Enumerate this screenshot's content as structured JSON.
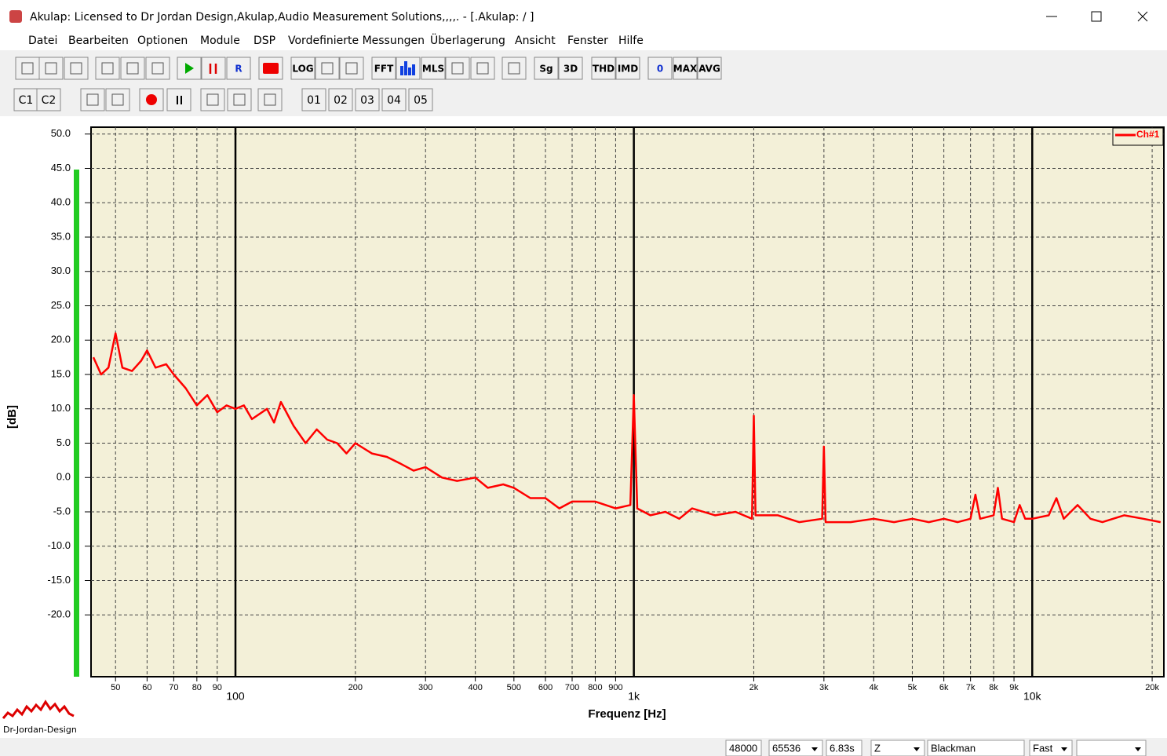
{
  "window": {
    "title": "Akulap: Licensed to Dr Jordan Design,Akulap,Audio Measurement Solutions,,,,. - [.Akulap: / ]"
  },
  "menu": [
    "Datei",
    "Bearbeiten",
    "Optionen",
    "Module",
    "DSP",
    "Vordefinierte Messungen",
    "Überlagerung",
    "Ansicht",
    "Fenster",
    "Hilfe"
  ],
  "toolbar": {
    "row1": [
      "R",
      "LOG",
      "FFT",
      "MLS",
      "Sg",
      "3D",
      "THD",
      "IMD",
      "0",
      "MAX",
      "AVG"
    ],
    "row2": [
      "C1",
      "C2",
      "01",
      "02",
      "03",
      "04",
      "05"
    ]
  },
  "chart_data": {
    "type": "line",
    "xlabel": "Frequenz [Hz]",
    "ylabel": "[dB]",
    "xscale": "log",
    "xlim": [
      43.4,
      21400
    ],
    "ylim": [
      -29,
      51
    ],
    "grid": true,
    "legend": "upper right",
    "xticks_major": [
      100,
      {
        "value": 1000,
        "label": "1k"
      },
      {
        "value": 10000,
        "label": "10k"
      }
    ],
    "xticks": [
      50,
      60,
      70,
      80,
      90,
      200,
      300,
      400,
      500,
      600,
      700,
      800,
      900,
      {
        "value": 2000,
        "label": "2k"
      },
      {
        "value": 3000,
        "label": "3k"
      },
      {
        "value": 4000,
        "label": "4k"
      },
      {
        "value": 5000,
        "label": "5k"
      },
      {
        "value": 6000,
        "label": "6k"
      },
      {
        "value": 7000,
        "label": "7k"
      },
      {
        "value": 8000,
        "label": "8k"
      },
      {
        "value": 9000,
        "label": "9k"
      },
      {
        "value": 20000,
        "label": "20k"
      }
    ],
    "yticks": [
      {
        "value": 50,
        "label": "50.0"
      },
      {
        "value": 45,
        "label": "45.0"
      },
      {
        "value": 40,
        "label": "40.0"
      },
      {
        "value": 35,
        "label": "35.0"
      },
      {
        "value": 30,
        "label": "30.0"
      },
      {
        "value": 25,
        "label": "25.0"
      },
      {
        "value": 20,
        "label": "20.0"
      },
      {
        "value": 15,
        "label": "15.0"
      },
      {
        "value": 10,
        "label": "10.0"
      },
      {
        "value": 5,
        "label": "5.0"
      },
      {
        "value": 0,
        "label": "0.0"
      },
      {
        "value": -5,
        "label": "-5.0"
      },
      {
        "value": -10,
        "label": "-10.0"
      },
      {
        "value": -15,
        "label": "-15.0"
      },
      {
        "value": -20,
        "label": "-20.0"
      }
    ],
    "x": [
      44,
      46,
      48,
      50,
      52,
      55,
      58,
      60,
      63,
      67,
      70,
      75,
      80,
      85,
      90,
      95,
      100,
      105,
      110,
      120,
      125,
      130,
      140,
      150,
      160,
      170,
      180,
      190,
      200,
      220,
      240,
      260,
      280,
      300,
      330,
      360,
      400,
      430,
      470,
      500,
      550,
      600,
      650,
      700,
      800,
      900,
      980,
      1000,
      1020,
      1100,
      1200,
      1300,
      1400,
      1600,
      1800,
      1980,
      2000,
      2020,
      2300,
      2600,
      2970,
      3000,
      3030,
      3500,
      4000,
      4500,
      5000,
      5500,
      6000,
      6500,
      7000,
      7200,
      7400,
      8000,
      8200,
      8400,
      9000,
      9300,
      9600,
      10000,
      11000,
      11500,
      12000,
      13000,
      14000,
      15000,
      17000,
      19000,
      21000
    ],
    "series": [
      {
        "name": "Ch#1",
        "color": "#ff0000",
        "values": [
          17.5,
          15,
          16,
          21,
          16,
          15.5,
          17,
          18.5,
          16,
          16.5,
          15,
          13,
          10.5,
          12,
          9.5,
          10.5,
          10,
          10.5,
          8.5,
          10,
          8,
          11,
          7.5,
          5,
          7,
          5.5,
          5,
          3.5,
          5,
          3.5,
          3,
          2,
          1,
          1.5,
          0,
          -0.5,
          0,
          -1.5,
          -1,
          -1.5,
          -3,
          -3,
          -4.5,
          -3.5,
          -3.5,
          -4.5,
          -4,
          12,
          -4.5,
          -5.5,
          -5,
          -6,
          -4.5,
          -5.5,
          -5,
          -6,
          9,
          -5.5,
          -5.5,
          -6.5,
          -6,
          4.5,
          -6.5,
          -6.5,
          -6,
          -6.5,
          -6,
          -6.5,
          -6,
          -6.5,
          -6,
          -2.5,
          -6,
          -5.5,
          -1.5,
          -6,
          -6.5,
          -4,
          -6,
          -6,
          -5.5,
          -3,
          -6,
          -4,
          -6,
          -6.5,
          -5.5,
          -6,
          -6.5
        ]
      }
    ]
  },
  "logo": "Dr-Jordan-Design",
  "status_bar": [
    "48000",
    "65536",
    "6.83s",
    "Z",
    "Blackman",
    "Fast"
  ]
}
